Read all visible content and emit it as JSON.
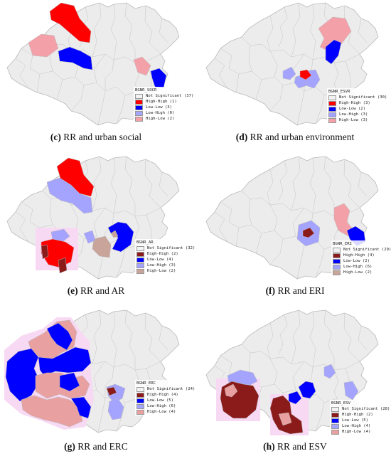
{
  "colors": {
    "not_significant": "#ececec",
    "boundary": "#b9b9b9",
    "halo": "#f7d9f3"
  },
  "panels": [
    {
      "caption_letter": "(c)",
      "caption_text": " RR and urban social",
      "legend_title": "BGNR_SOCR",
      "legend": [
        {
          "label": "Not Significant (37)",
          "color": "#f2f2f2"
        },
        {
          "label": "High-High (1)",
          "color": "#ff0000"
        },
        {
          "label": "Low-Low (3)",
          "color": "#0000ff"
        },
        {
          "label": "Low-High (0)",
          "color": "#a4a4ff"
        },
        {
          "label": "High-Low (2)",
          "color": "#f4a0a8"
        }
      ]
    },
    {
      "caption_letter": "(d)",
      "caption_text": " RR and urban environment",
      "legend_title": "BGNR_ESVR",
      "legend": [
        {
          "label": "Not Significant (30)",
          "color": "#f2f2f2"
        },
        {
          "label": "High-High (3)",
          "color": "#ff0000"
        },
        {
          "label": "Low-Low (2)",
          "color": "#0000ff"
        },
        {
          "label": "Low-High (3)",
          "color": "#a4a4ff"
        },
        {
          "label": "High-Low (3)",
          "color": "#f4a0a8"
        }
      ]
    },
    {
      "caption_letter": "(e)",
      "caption_text": " RR and AR",
      "legend_title": "BGNR_AR",
      "legend": [
        {
          "label": "Not Significant (32)",
          "color": "#f2f2f2"
        },
        {
          "label": "High-High (2)",
          "color": "#8b1a1a"
        },
        {
          "label": "Low-Low (4)",
          "color": "#0000ff"
        },
        {
          "label": "Low-High (3)",
          "color": "#a4a4ff"
        },
        {
          "label": "High-Low (2)",
          "color": "#c9a49a"
        }
      ]
    },
    {
      "caption_letter": "(f)",
      "caption_text": " RR and ERI",
      "legend_title": "BGNR_ERI",
      "legend": [
        {
          "label": "Not Significant (29)",
          "color": "#f2f2f2"
        },
        {
          "label": "High-High (4)",
          "color": "#8b1a1a"
        },
        {
          "label": "Low-Low (2)",
          "color": "#0000ff"
        },
        {
          "label": "Low-High (6)",
          "color": "#a4a4ff"
        },
        {
          "label": "High-Low (2)",
          "color": "#c9a49a"
        }
      ]
    },
    {
      "caption_letter": "(g)",
      "caption_text": " RR and ERC",
      "legend_title": "BGNR_ERC",
      "legend": [
        {
          "label": "Not Significant (24)",
          "color": "#f2f2f2"
        },
        {
          "label": "High-High (4)",
          "color": "#8b1a1a"
        },
        {
          "label": "Low-Low (5)",
          "color": "#0000ff"
        },
        {
          "label": "Low-High (6)",
          "color": "#a4a4ff"
        },
        {
          "label": "High-Low (4)",
          "color": "#e8a0a0"
        }
      ]
    },
    {
      "caption_letter": "(h)",
      "caption_text": " RR and ESV",
      "legend_title": "BGNR_ESV",
      "legend": [
        {
          "label": "Not Significant (28)",
          "color": "#f2f2f2"
        },
        {
          "label": "High-High (2)",
          "color": "#8b1a1a"
        },
        {
          "label": "Low-Low (5)",
          "color": "#0000ff"
        },
        {
          "label": "Low-High (4)",
          "color": "#a4a4ff"
        },
        {
          "label": "High-Low (4)",
          "color": "#e8a0a0"
        }
      ]
    }
  ]
}
